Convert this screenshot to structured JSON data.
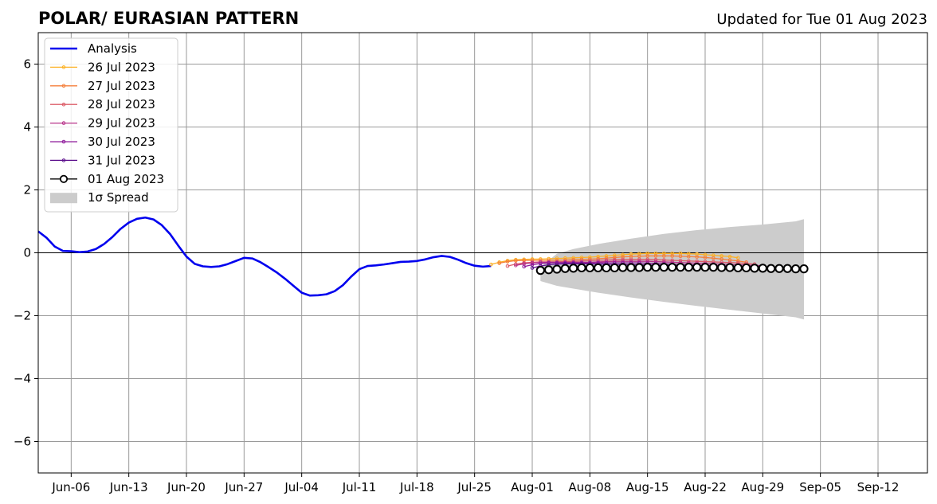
{
  "title": "POLAR/ EURASIAN  PATTERN",
  "updated": "Updated for Tue 01 Aug 2023",
  "chart_data": {
    "type": "line",
    "xlim": [
      "2023-06-02",
      "2023-09-18"
    ],
    "ylim": [
      -7,
      7
    ],
    "grid": true,
    "legend_position": "top-left",
    "x_ticks": [
      {
        "date": "2023-06-06",
        "label": "Jun-06"
      },
      {
        "date": "2023-06-13",
        "label": "Jun-13"
      },
      {
        "date": "2023-06-20",
        "label": "Jun-20"
      },
      {
        "date": "2023-06-27",
        "label": "Jun-27"
      },
      {
        "date": "2023-07-04",
        "label": "Jul-04"
      },
      {
        "date": "2023-07-11",
        "label": "Jul-11"
      },
      {
        "date": "2023-07-18",
        "label": "Jul-18"
      },
      {
        "date": "2023-07-25",
        "label": "Jul-25"
      },
      {
        "date": "2023-08-01",
        "label": "Aug-01"
      },
      {
        "date": "2023-08-08",
        "label": "Aug-08"
      },
      {
        "date": "2023-08-15",
        "label": "Aug-15"
      },
      {
        "date": "2023-08-22",
        "label": "Aug-22"
      },
      {
        "date": "2023-08-29",
        "label": "Aug-29"
      },
      {
        "date": "2023-09-05",
        "label": "Sep-05"
      },
      {
        "date": "2023-09-12",
        "label": "Sep-12"
      }
    ],
    "y_ticks": [
      {
        "value": 6,
        "label": "6"
      },
      {
        "value": 4,
        "label": "4"
      },
      {
        "value": 2,
        "label": "2"
      },
      {
        "value": 0,
        "label": "0"
      },
      {
        "value": -2,
        "label": "−2"
      },
      {
        "value": -4,
        "label": "−4"
      },
      {
        "value": -6,
        "label": "−6"
      }
    ],
    "analysis": {
      "name": "Analysis",
      "color": "#0000ee",
      "x": [
        "2023-06-02",
        "2023-06-03",
        "2023-06-04",
        "2023-06-05",
        "2023-06-06",
        "2023-06-07",
        "2023-06-08",
        "2023-06-09",
        "2023-06-10",
        "2023-06-11",
        "2023-06-12",
        "2023-06-13",
        "2023-06-14",
        "2023-06-15",
        "2023-06-16",
        "2023-06-17",
        "2023-06-18",
        "2023-06-19",
        "2023-06-20",
        "2023-06-21",
        "2023-06-22",
        "2023-06-23",
        "2023-06-24",
        "2023-06-25",
        "2023-06-26",
        "2023-06-27",
        "2023-06-28",
        "2023-06-29",
        "2023-06-30",
        "2023-07-01",
        "2023-07-02",
        "2023-07-03",
        "2023-07-04",
        "2023-07-05",
        "2023-07-06",
        "2023-07-07",
        "2023-07-08",
        "2023-07-09",
        "2023-07-10",
        "2023-07-11",
        "2023-07-12",
        "2023-07-13",
        "2023-07-14",
        "2023-07-15",
        "2023-07-16",
        "2023-07-17",
        "2023-07-18",
        "2023-07-19",
        "2023-07-20",
        "2023-07-21",
        "2023-07-22",
        "2023-07-23",
        "2023-07-24",
        "2023-07-25",
        "2023-07-26",
        "2023-07-27"
      ],
      "values": [
        0.68,
        0.48,
        0.2,
        0.06,
        0.05,
        0.02,
        0.04,
        0.12,
        0.28,
        0.5,
        0.76,
        0.96,
        1.08,
        1.12,
        1.06,
        0.88,
        0.6,
        0.23,
        -0.12,
        -0.35,
        -0.43,
        -0.45,
        -0.43,
        -0.36,
        -0.26,
        -0.16,
        -0.18,
        -0.3,
        -0.46,
        -0.63,
        -0.83,
        -1.05,
        -1.27,
        -1.36,
        -1.35,
        -1.32,
        -1.22,
        -1.03,
        -0.76,
        -0.52,
        -0.42,
        -0.4,
        -0.37,
        -0.33,
        -0.29,
        -0.28,
        -0.26,
        -0.21,
        -0.14,
        -0.1,
        -0.13,
        -0.22,
        -0.33,
        -0.41,
        -0.44,
        -0.42
      ]
    },
    "forecasts": [
      {
        "name": "26 Jul 2023",
        "color": "#fcb125",
        "start": "2023-07-27",
        "values": [
          -0.37,
          -0.3,
          -0.25,
          -0.22,
          -0.21,
          -0.2,
          -0.2,
          -0.19,
          -0.18,
          -0.17,
          -0.16,
          -0.15,
          -0.14,
          -0.12,
          -0.1,
          -0.08,
          -0.06,
          -0.04,
          -0.03,
          -0.02,
          -0.02,
          -0.02,
          -0.02,
          -0.02,
          -0.03,
          -0.04,
          -0.06,
          -0.08,
          -0.1,
          -0.12,
          -0.16
        ]
      },
      {
        "name": "27 Jul 2023",
        "color": "#f47f3b",
        "start": "2023-07-28",
        "values": [
          -0.33,
          -0.28,
          -0.25,
          -0.24,
          -0.24,
          -0.24,
          -0.24,
          -0.24,
          -0.23,
          -0.22,
          -0.21,
          -0.2,
          -0.19,
          -0.17,
          -0.15,
          -0.13,
          -0.12,
          -0.11,
          -0.1,
          -0.1,
          -0.1,
          -0.1,
          -0.11,
          -0.12,
          -0.13,
          -0.15,
          -0.17,
          -0.2,
          -0.23,
          -0.26,
          -0.3
        ]
      },
      {
        "name": "28 Jul 2023",
        "color": "#dc5b67",
        "start": "2023-07-29",
        "values": [
          -0.42,
          -0.36,
          -0.32,
          -0.3,
          -0.29,
          -0.29,
          -0.29,
          -0.28,
          -0.27,
          -0.26,
          -0.25,
          -0.24,
          -0.23,
          -0.22,
          -0.21,
          -0.21,
          -0.21,
          -0.21,
          -0.22,
          -0.23,
          -0.24,
          -0.25,
          -0.26,
          -0.27,
          -0.28,
          -0.29,
          -0.3,
          -0.31,
          -0.32,
          -0.34,
          -0.36
        ]
      },
      {
        "name": "29 Jul 2023",
        "color": "#b8338a",
        "start": "2023-07-30",
        "values": [
          -0.4,
          -0.35,
          -0.32,
          -0.3,
          -0.3,
          -0.3,
          -0.3,
          -0.3,
          -0.3,
          -0.3,
          -0.29,
          -0.28,
          -0.27,
          -0.27,
          -0.27,
          -0.27,
          -0.27,
          -0.28,
          -0.29,
          -0.3,
          -0.31,
          -0.32,
          -0.33,
          -0.34,
          -0.35,
          -0.36,
          -0.37,
          -0.38,
          -0.39,
          -0.4,
          -0.41
        ]
      },
      {
        "name": "30 Jul 2023",
        "color": "#8e1a9b",
        "start": "2023-07-31",
        "values": [
          -0.44,
          -0.38,
          -0.34,
          -0.32,
          -0.32,
          -0.32,
          -0.32,
          -0.32,
          -0.32,
          -0.32,
          -0.32,
          -0.32,
          -0.32,
          -0.32,
          -0.32,
          -0.33,
          -0.34,
          -0.35,
          -0.36,
          -0.37,
          -0.38,
          -0.39,
          -0.4,
          -0.41,
          -0.42,
          -0.43,
          -0.44,
          -0.45,
          -0.45,
          -0.46,
          -0.46
        ]
      },
      {
        "name": "31 Jul 2023",
        "color": "#5c0f8c",
        "start": "2023-08-01",
        "values": [
          -0.48,
          -0.42,
          -0.38,
          -0.36,
          -0.35,
          -0.35,
          -0.35,
          -0.35,
          -0.36,
          -0.36,
          -0.37,
          -0.37,
          -0.38,
          -0.38,
          -0.39,
          -0.39,
          -0.4,
          -0.41,
          -0.42,
          -0.43,
          -0.44,
          -0.44,
          -0.45,
          -0.46,
          -0.46,
          -0.47,
          -0.47,
          -0.48,
          -0.48,
          -0.48,
          -0.49
        ]
      }
    ],
    "current": {
      "name": "01 Aug 2023",
      "color": "#000000",
      "start": "2023-08-02",
      "values": [
        -0.56,
        -0.54,
        -0.52,
        -0.5,
        -0.49,
        -0.48,
        -0.48,
        -0.48,
        -0.48,
        -0.48,
        -0.47,
        -0.47,
        -0.47,
        -0.46,
        -0.46,
        -0.46,
        -0.46,
        -0.46,
        -0.46,
        -0.46,
        -0.46,
        -0.46,
        -0.47,
        -0.47,
        -0.48,
        -0.48,
        -0.49,
        -0.49,
        -0.5,
        -0.5,
        -0.5,
        -0.51,
        -0.51
      ]
    },
    "spread": {
      "name": "1σ Spread",
      "color": "#cccccc",
      "x": [
        "2023-08-02",
        "2023-08-04",
        "2023-08-06",
        "2023-08-09",
        "2023-08-13",
        "2023-08-17",
        "2023-08-21",
        "2023-08-25",
        "2023-08-29",
        "2023-09-02",
        "2023-09-03"
      ],
      "upper": [
        -0.45,
        -0.03,
        0.12,
        0.28,
        0.45,
        0.6,
        0.72,
        0.82,
        0.9,
        1.0,
        1.07
      ],
      "lower": [
        -0.9,
        -1.05,
        -1.14,
        -1.27,
        -1.42,
        -1.56,
        -1.69,
        -1.81,
        -1.93,
        -2.05,
        -2.12
      ]
    }
  }
}
